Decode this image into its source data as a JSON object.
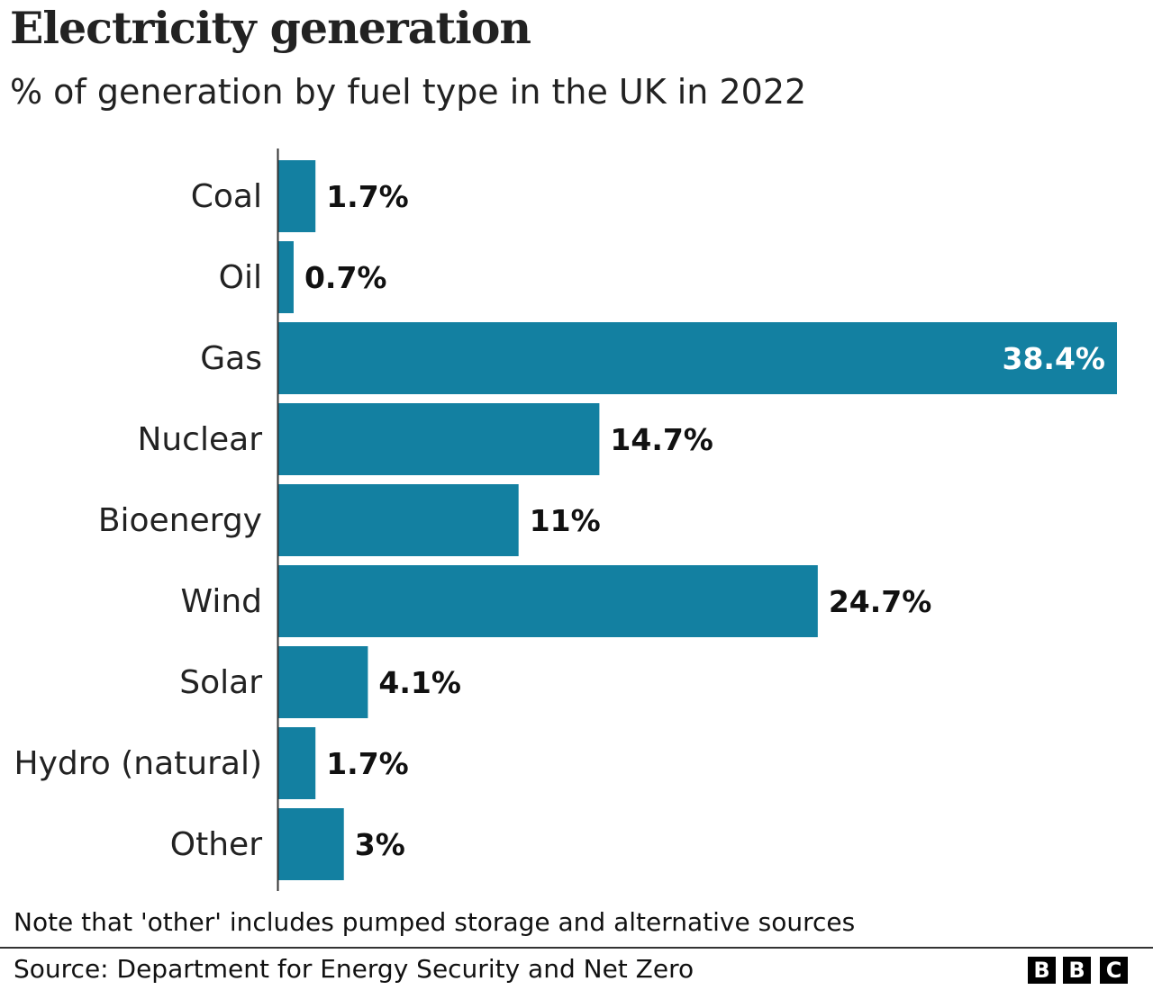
{
  "chart_data": {
    "type": "bar",
    "orientation": "horizontal",
    "title": "Electricity generation",
    "subtitle": "% of generation by fuel type in the UK in 2022",
    "categories": [
      "Coal",
      "Oil",
      "Gas",
      "Nuclear",
      "Bioenergy",
      "Wind",
      "Solar",
      "Hydro (natural)",
      "Other"
    ],
    "values": [
      1.7,
      0.7,
      38.4,
      14.7,
      11,
      24.7,
      4.1,
      1.7,
      3
    ],
    "data_labels": [
      "1.7%",
      "0.7%",
      "38.4%",
      "14.7%",
      "11%",
      "24.7%",
      "4.1%",
      "1.7%",
      "3%"
    ],
    "xlim": [
      0,
      38.4
    ],
    "grid": false,
    "bar_color": "#1380a1",
    "note": "Note that 'other' includes pumped storage and alternative sources",
    "source": "Source: Department for Energy Security and Net Zero"
  },
  "logo": {
    "text": [
      "B",
      "B",
      "C"
    ]
  }
}
